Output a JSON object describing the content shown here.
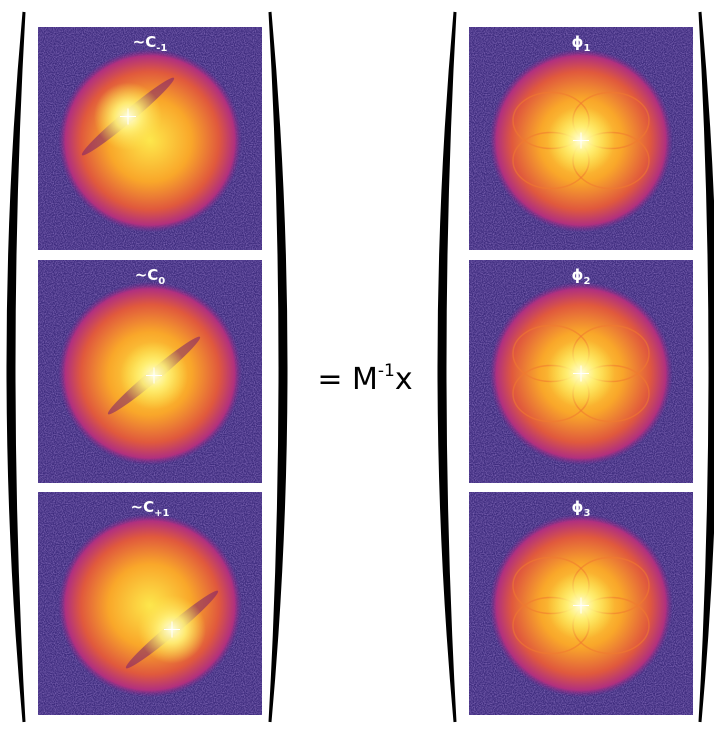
{
  "left_panels": [
    {
      "label": "~C",
      "sub": "-1"
    },
    {
      "label": "~C",
      "sub": "0"
    },
    {
      "label": "~C",
      "sub": "+1"
    }
  ],
  "equation": {
    "prefix": "= M",
    "sup": "-1",
    "suffix": "x"
  },
  "right_panels": [
    {
      "label": "ϕ",
      "sub": "1"
    },
    {
      "label": "ϕ",
      "sub": "2"
    },
    {
      "label": "ϕ",
      "sub": "3"
    }
  ]
}
